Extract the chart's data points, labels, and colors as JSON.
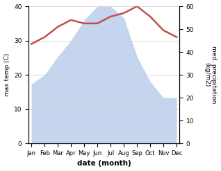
{
  "months": [
    "Jan",
    "Feb",
    "Mar",
    "Apr",
    "May",
    "Jun",
    "Jul",
    "Aug",
    "Sep",
    "Oct",
    "Nov",
    "Dec"
  ],
  "temperature": [
    29,
    31,
    34,
    36,
    35,
    35,
    37,
    38,
    40,
    37,
    33,
    31
  ],
  "precipitation": [
    26,
    30,
    38,
    45,
    54,
    60,
    60,
    55,
    38,
    27,
    20,
    20
  ],
  "temp_color": "#c0504d",
  "precip_color": "#c5d5ee",
  "title": "",
  "xlabel": "date (month)",
  "ylabel_left": "max temp (C)",
  "ylabel_right": "med. precipitation\n(kg/m2)",
  "ylim_left": [
    0,
    40
  ],
  "ylim_right": [
    0,
    60
  ],
  "yticks_left": [
    0,
    10,
    20,
    30,
    40
  ],
  "yticks_right": [
    0,
    10,
    20,
    30,
    40,
    50,
    60
  ],
  "background_color": "#ffffff",
  "grid_color": "#cccccc"
}
